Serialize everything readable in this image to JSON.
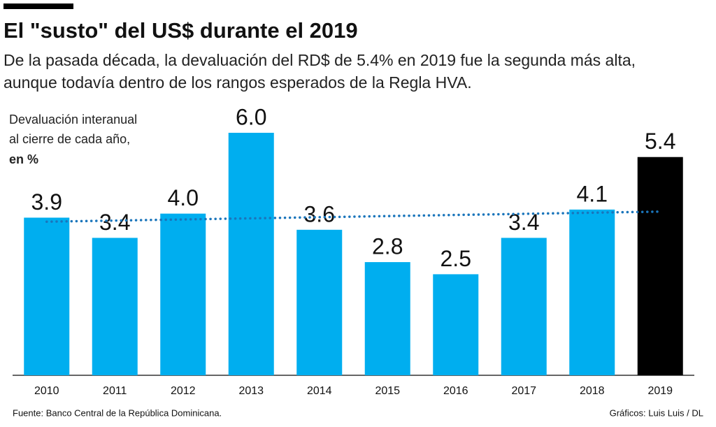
{
  "chart_data": {
    "type": "bar",
    "title": "El \"susto\" del US$ durante el 2019",
    "subtitle": [
      "De la pasada década, la devaluación del RD$ de 5.4% en 2019 fue la segunda más alta,",
      "aunque todavía dentro de los rangos esperados de la Regla HVA."
    ],
    "ylabel": [
      "Devaluación interanual",
      "al cierre de cada año,",
      "en %"
    ],
    "categories": [
      "2010",
      "2011",
      "2012",
      "2013",
      "2014",
      "2015",
      "2016",
      "2017",
      "2018",
      "2019"
    ],
    "values": [
      3.9,
      3.4,
      4.0,
      6.0,
      3.6,
      2.8,
      2.5,
      3.4,
      4.1,
      5.4
    ],
    "value_labels": [
      "3.9",
      "3.4",
      "4.0",
      "6.0",
      "3.6",
      "2.8",
      "2.5",
      "3.4",
      "4.1",
      "5.4"
    ],
    "colors": [
      "#00aeef",
      "#00aeef",
      "#00aeef",
      "#00aeef",
      "#00aeef",
      "#00aeef",
      "#00aeef",
      "#00aeef",
      "#00aeef",
      "#000000"
    ],
    "ylim": [
      0,
      6
    ],
    "reference_line": {
      "start": 3.8,
      "end": 4.05,
      "color": "#1a75bb"
    },
    "source": "Fuente:  Banco Central de la República Dominicana.",
    "credit": "Gráficos: Luis Luis / DL"
  }
}
